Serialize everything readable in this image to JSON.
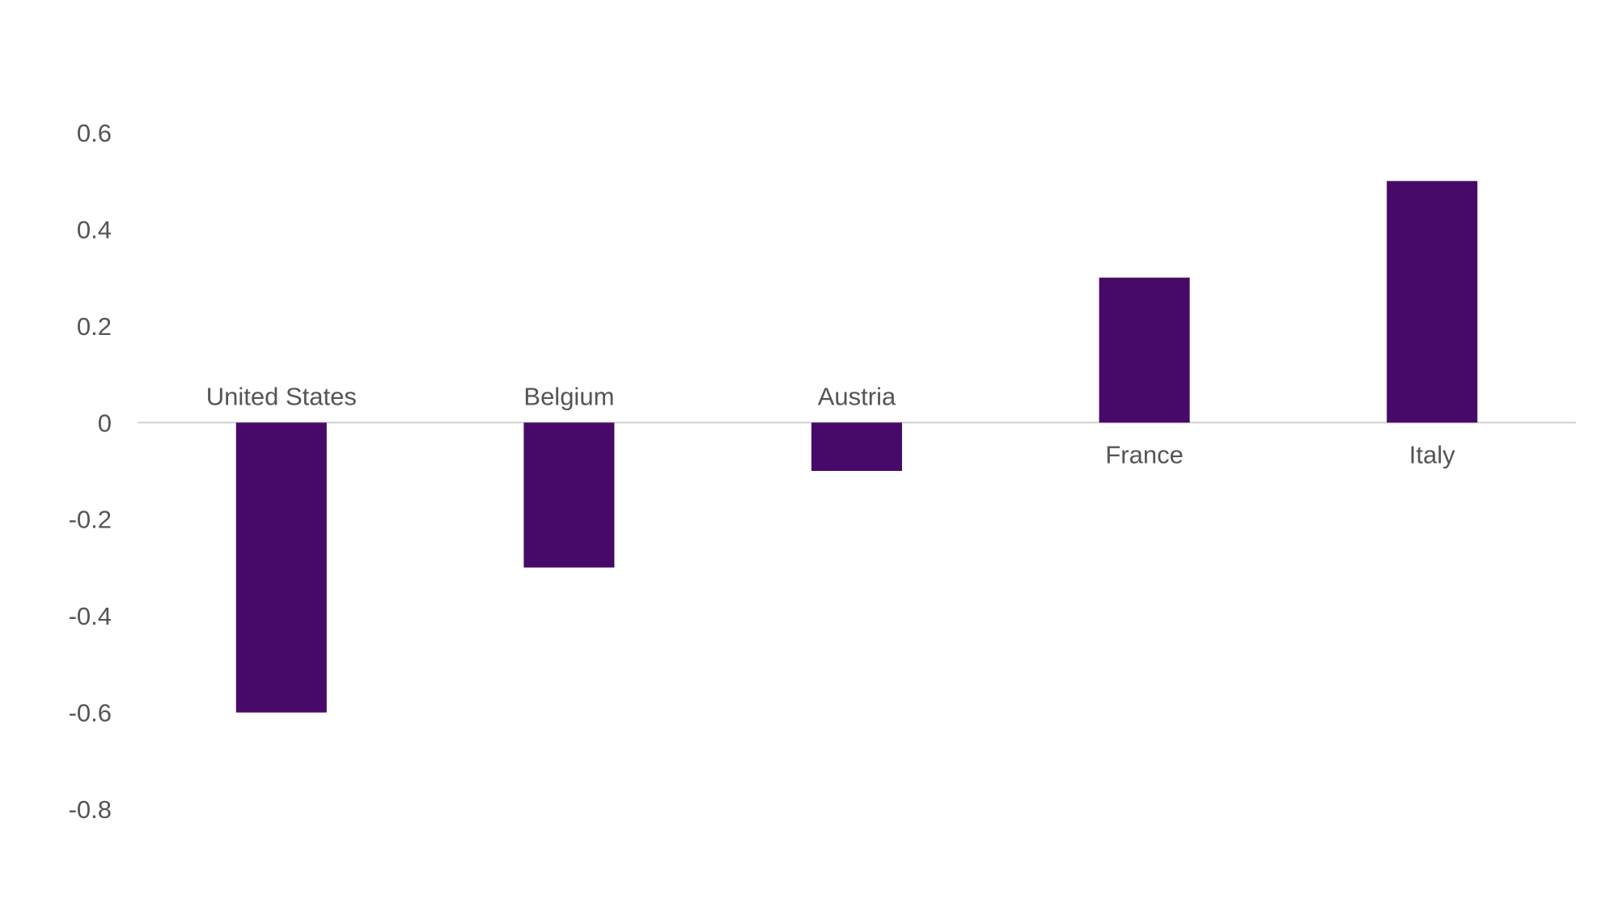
{
  "chart_data": {
    "type": "bar",
    "categories": [
      "United States",
      "Belgium",
      "Austria",
      "France",
      "Italy"
    ],
    "values": [
      -0.6,
      -0.3,
      -0.1,
      0.3,
      0.5
    ],
    "ylim": [
      -0.8,
      0.6
    ],
    "yticks": [
      "0.6",
      "0.4",
      "0.2",
      "0",
      "-0.2",
      "-0.4",
      "-0.6",
      "-0.8"
    ],
    "ytick_values": [
      0.6,
      0.4,
      0.2,
      0,
      -0.2,
      -0.4,
      -0.6,
      -0.8
    ],
    "title": "",
    "xlabel": "",
    "ylabel": "",
    "grid": false,
    "legend": "none",
    "bar_color": "#470a68",
    "zero_line_color": "#d0d0d0"
  }
}
